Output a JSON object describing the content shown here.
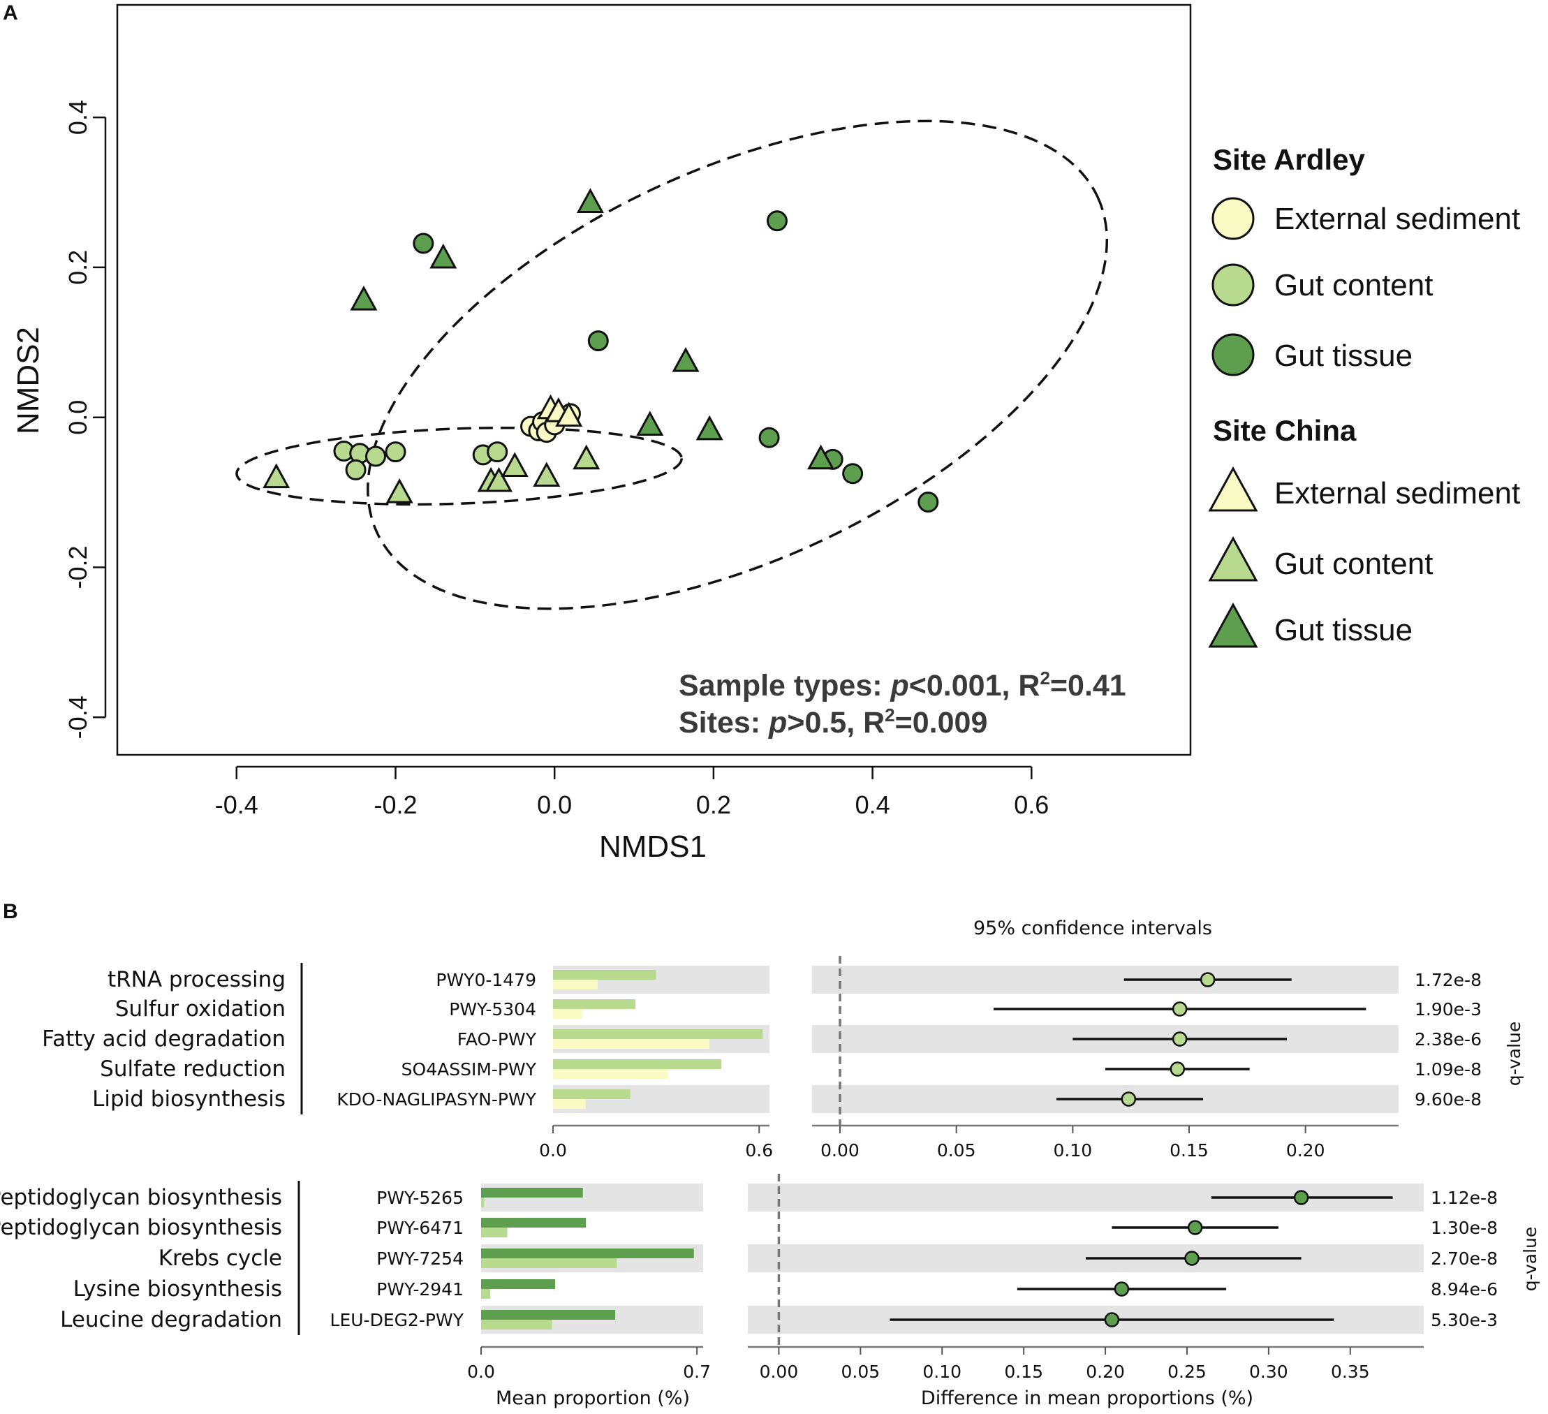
{
  "chart_data": [
    {
      "panel": "A",
      "type": "scatter",
      "xlabel": "NMDS1",
      "ylabel": "NMDS2",
      "xlim": [
        -0.55,
        0.8
      ],
      "ylim": [
        -0.45,
        0.55
      ],
      "x_ticks": [
        "-0.4",
        "-0.2",
        "0.0",
        "0.2",
        "0.4",
        "0.6"
      ],
      "y_ticks": [
        "-0.4",
        "-0.2",
        "0.0",
        "0.2",
        "0.4"
      ],
      "legend": {
        "groups": [
          {
            "title": "Site Ardley",
            "shape": "circle",
            "items": [
              {
                "label": "External sediment",
                "color": "#FAFAC4"
              },
              {
                "label": "Gut content",
                "color": "#B7DA8E"
              },
              {
                "label": "Gut tissue",
                "color": "#5E9E4F"
              }
            ]
          },
          {
            "title": "Site China",
            "shape": "triangle",
            "items": [
              {
                "label": "External sediment",
                "color": "#FAFAC4"
              },
              {
                "label": "Gut content",
                "color": "#B7DA8E"
              },
              {
                "label": "Gut tissue",
                "color": "#5E9E4F"
              }
            ]
          }
        ]
      },
      "annotation": {
        "line1_prefix": "Sample types: ",
        "line1_p": "p",
        "line1_p_val": "<0.001, R",
        "line1_sup": "2",
        "line1_end": "=0.41",
        "line2_prefix": "Sites: ",
        "line2_p": "p",
        "line2_p_val": ">0.5, R",
        "line2_sup": "2",
        "line2_end": "=0.009"
      },
      "ellipses": [
        {
          "cx": 0.23,
          "cy": 0.07,
          "rx": 0.5,
          "ry": 0.26,
          "angle_deg": -25
        },
        {
          "cx": -0.12,
          "cy": -0.065,
          "rx": 0.28,
          "ry": 0.05,
          "angle_deg": -2
        }
      ],
      "series": [
        {
          "name": "Ardley External sediment",
          "shape": "circle",
          "color": "#FAFAC4",
          "points": [
            [
              -0.03,
              -0.012
            ],
            [
              -0.02,
              -0.018
            ],
            [
              -0.015,
              -0.006
            ],
            [
              -0.01,
              -0.02
            ],
            [
              0.0,
              -0.01
            ],
            [
              0.02,
              0.005
            ]
          ]
        },
        {
          "name": "Ardley Gut content",
          "shape": "circle",
          "color": "#B7DA8E",
          "points": [
            [
              -0.265,
              -0.045
            ],
            [
              -0.245,
              -0.048
            ],
            [
              -0.225,
              -0.052
            ],
            [
              -0.2,
              -0.046
            ],
            [
              -0.25,
              -0.07
            ],
            [
              -0.09,
              -0.05
            ],
            [
              -0.072,
              -0.046
            ]
          ]
        },
        {
          "name": "Ardley Gut tissue",
          "shape": "circle",
          "color": "#5E9E4F",
          "points": [
            [
              -0.165,
              0.232
            ],
            [
              0.28,
              0.262
            ],
            [
              0.055,
              0.102
            ],
            [
              0.27,
              -0.027
            ],
            [
              0.35,
              -0.056
            ],
            [
              0.375,
              -0.075
            ],
            [
              0.47,
              -0.113
            ]
          ]
        },
        {
          "name": "China External sediment",
          "shape": "triangle",
          "color": "#FAFAC4",
          "points": [
            [
              -0.005,
              0.012
            ],
            [
              0.005,
              0.008
            ],
            [
              0.018,
              0.002
            ]
          ]
        },
        {
          "name": "China Gut content",
          "shape": "triangle",
          "color": "#B7DA8E",
          "points": [
            [
              -0.35,
              -0.08
            ],
            [
              -0.195,
              -0.1
            ],
            [
              -0.08,
              -0.085
            ],
            [
              -0.07,
              -0.085
            ],
            [
              -0.05,
              -0.065
            ],
            [
              -0.01,
              -0.078
            ],
            [
              0.04,
              -0.055
            ]
          ]
        },
        {
          "name": "China Gut tissue",
          "shape": "triangle",
          "color": "#5E9E4F",
          "points": [
            [
              0.045,
              0.287
            ],
            [
              -0.14,
              0.213
            ],
            [
              -0.24,
              0.157
            ],
            [
              0.165,
              0.075
            ],
            [
              0.12,
              -0.01
            ],
            [
              0.195,
              -0.016
            ],
            [
              0.335,
              -0.055
            ]
          ]
        }
      ]
    },
    {
      "panel": "B",
      "type": "bar",
      "title": "95% confidence intervals",
      "xlabel_bars": "Mean proportion (%)",
      "xlabel_diff": "Difference in mean proportions (%)",
      "qvalue_label": "q-value",
      "groups": [
        {
          "bar_xlim": [
            0.0,
            0.63
          ],
          "bar_ticks": [
            "0.0",
            "0.6"
          ],
          "diff_xlim": [
            -0.012,
            0.24
          ],
          "diff_ticks": [
            "0.00",
            "0.05",
            "0.10",
            "0.15",
            "0.20"
          ],
          "series_colors": {
            "primary": "#B7DA8E",
            "secondary": "#FAFAC4",
            "point": "#B7DA8E"
          },
          "rows": [
            {
              "function": "tRNA processing",
              "pathway": "PWY0-1479",
              "primary": 0.3,
              "secondary": 0.13,
              "diff": 0.158,
              "ci": [
                0.122,
                0.194
              ],
              "q": "1.72e-8"
            },
            {
              "function": "Sulfur oxidation",
              "pathway": "PWY-5304",
              "primary": 0.24,
              "secondary": 0.085,
              "diff": 0.146,
              "ci": [
                0.066,
                0.226
              ],
              "q": "1.90e-3"
            },
            {
              "function": "Fatty acid degradation",
              "pathway": "FAO-PWY",
              "primary": 0.61,
              "secondary": 0.455,
              "diff": 0.146,
              "ci": [
                0.1,
                0.192
              ],
              "q": "2.38e-6"
            },
            {
              "function": "Sulfate reduction",
              "pathway": "SO4ASSIM-PWY",
              "primary": 0.49,
              "secondary": 0.335,
              "diff": 0.145,
              "ci": [
                0.114,
                0.176
              ],
              "q": "1.09e-8"
            },
            {
              "function": "Lipid biosynthesis",
              "pathway": "KDO-NAGLIPASYN-PWY",
              "primary": 0.225,
              "secondary": 0.095,
              "diff": 0.124,
              "ci": [
                0.093,
                0.156
              ],
              "q": "9.60e-8"
            }
          ]
        },
        {
          "bar_xlim": [
            0.0,
            0.72
          ],
          "bar_ticks": [
            "0.0",
            "0.7"
          ],
          "diff_xlim": [
            -0.019,
            0.395
          ],
          "diff_ticks": [
            "0.00",
            "0.05",
            "0.10",
            "0.15",
            "0.20",
            "0.25",
            "0.30",
            "0.35"
          ],
          "series_colors": {
            "primary": "#5E9E4F",
            "secondary": "#B7DA8E",
            "point": "#5E9E4F"
          },
          "rows": [
            {
              "function": "Peptidoglycan biosynthesis",
              "pathway": "PWY-5265",
              "primary": 0.33,
              "secondary": 0.01,
              "diff": 0.32,
              "ci": [
                0.265,
                0.376
              ],
              "q": "1.12e-8"
            },
            {
              "function": "Peptidoglycan biosynthesis",
              "pathway": "PWY-6471",
              "primary": 0.34,
              "secondary": 0.085,
              "diff": 0.255,
              "ci": [
                0.204,
                0.306
              ],
              "q": "1.30e-8"
            },
            {
              "function": "Krebs cycle",
              "pathway": "PWY-7254",
              "primary": 0.69,
              "secondary": 0.44,
              "diff": 0.253,
              "ci": [
                0.188,
                0.32
              ],
              "q": "2.70e-8"
            },
            {
              "function": "Lysine biosynthesis",
              "pathway": "PWY-2941",
              "primary": 0.24,
              "secondary": 0.03,
              "diff": 0.21,
              "ci": [
                0.146,
                0.274
              ],
              "q": "8.94e-6"
            },
            {
              "function": "Leucine degradation",
              "pathway": "LEU-DEG2-PWY",
              "primary": 0.435,
              "secondary": 0.23,
              "diff": 0.204,
              "ci": [
                0.068,
                0.34
              ],
              "q": "5.30e-3"
            }
          ]
        }
      ]
    }
  ]
}
